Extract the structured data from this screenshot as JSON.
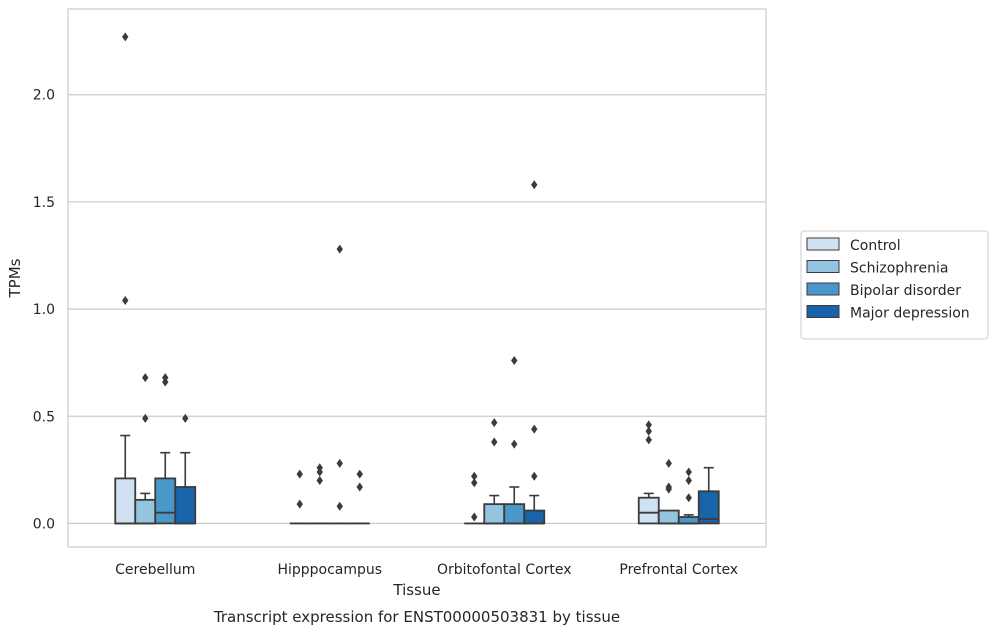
{
  "caption": "Transcript expression for ENST00000503831 by tissue",
  "chart_data": {
    "type": "box",
    "xlabel": "Tissue",
    "ylabel": "TPMs",
    "ylim": [
      -0.11,
      2.4
    ],
    "yticks": [
      0.0,
      0.5,
      1.0,
      1.5,
      2.0
    ],
    "ytick_labels": [
      "0.0",
      "0.5",
      "1.0",
      "1.5",
      "2.0"
    ],
    "grid": "horizontal",
    "legend_position": "right",
    "categories": [
      "Cerebellum",
      "Hipppocampus",
      "Orbitofontal Cortex",
      "Prefrontal Cortex"
    ],
    "series": [
      {
        "name": "Control",
        "color": "#d0e1f2",
        "boxes": [
          {
            "q1": 0.0,
            "median": 0.0,
            "q3": 0.21,
            "whisker_low": 0.0,
            "whisker_high": 0.41,
            "outliers": [
              1.04,
              2.27
            ]
          },
          {
            "q1": 0.0,
            "median": 0.0,
            "q3": 0.0,
            "whisker_low": 0.0,
            "whisker_high": 0.0,
            "outliers": [
              0.09,
              0.23
            ]
          },
          {
            "q1": 0.0,
            "median": 0.0,
            "q3": 0.0,
            "whisker_low": 0.0,
            "whisker_high": 0.0,
            "outliers": [
              0.03,
              0.19,
              0.22
            ]
          },
          {
            "q1": 0.0,
            "median": 0.05,
            "q3": 0.12,
            "whisker_low": 0.0,
            "whisker_high": 0.14,
            "outliers": [
              0.39,
              0.43,
              0.46
            ]
          }
        ]
      },
      {
        "name": "Schizophrenia",
        "color": "#94c4df",
        "boxes": [
          {
            "q1": 0.0,
            "median": 0.0,
            "q3": 0.11,
            "whisker_low": 0.0,
            "whisker_high": 0.14,
            "outliers": [
              0.49,
              0.68
            ]
          },
          {
            "q1": 0.0,
            "median": 0.0,
            "q3": 0.0,
            "whisker_low": 0.0,
            "whisker_high": 0.0,
            "outliers": [
              0.2,
              0.24,
              0.26
            ]
          },
          {
            "q1": 0.0,
            "median": 0.0,
            "q3": 0.09,
            "whisker_low": 0.0,
            "whisker_high": 0.13,
            "outliers": [
              0.38,
              0.47
            ]
          },
          {
            "q1": 0.0,
            "median": 0.0,
            "q3": 0.06,
            "whisker_low": 0.0,
            "whisker_high": 0.06,
            "outliers": [
              0.16,
              0.17,
              0.28
            ]
          }
        ]
      },
      {
        "name": "Bipolar disorder",
        "color": "#4a98c9",
        "boxes": [
          {
            "q1": 0.0,
            "median": 0.05,
            "q3": 0.21,
            "whisker_low": 0.0,
            "whisker_high": 0.33,
            "outliers": [
              0.66,
              0.68
            ]
          },
          {
            "q1": 0.0,
            "median": 0.0,
            "q3": 0.0,
            "whisker_low": 0.0,
            "whisker_high": 0.0,
            "outliers": [
              0.08,
              0.28,
              1.28
            ]
          },
          {
            "q1": 0.0,
            "median": 0.0,
            "q3": 0.09,
            "whisker_low": 0.0,
            "whisker_high": 0.17,
            "outliers": [
              0.37,
              0.76
            ]
          },
          {
            "q1": 0.0,
            "median": 0.0,
            "q3": 0.03,
            "whisker_low": 0.0,
            "whisker_high": 0.04,
            "outliers": [
              0.12,
              0.2,
              0.24
            ]
          }
        ]
      },
      {
        "name": "Major depression",
        "color": "#1764ab",
        "boxes": [
          {
            "q1": 0.0,
            "median": 0.0,
            "q3": 0.17,
            "whisker_low": 0.0,
            "whisker_high": 0.33,
            "outliers": [
              0.49
            ]
          },
          {
            "q1": 0.0,
            "median": 0.0,
            "q3": 0.0,
            "whisker_low": 0.0,
            "whisker_high": 0.0,
            "outliers": [
              0.17,
              0.23
            ]
          },
          {
            "q1": 0.0,
            "median": 0.0,
            "q3": 0.06,
            "whisker_low": 0.0,
            "whisker_high": 0.13,
            "outliers": [
              0.22,
              0.44,
              1.58
            ]
          },
          {
            "q1": 0.0,
            "median": 0.02,
            "q3": 0.15,
            "whisker_low": 0.0,
            "whisker_high": 0.26,
            "outliers": []
          }
        ]
      }
    ]
  }
}
